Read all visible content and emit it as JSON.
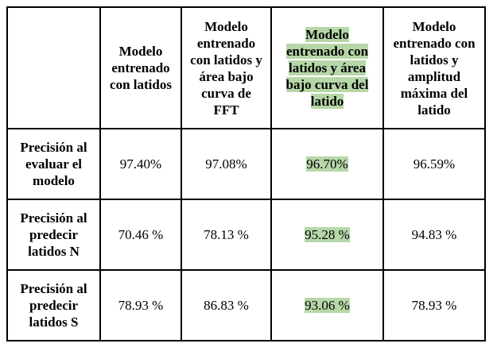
{
  "table": {
    "headers": [
      "",
      "Modelo entrenado con latidos",
      "Modelo entrenado con latidos y área bajo curva de FFT",
      "Modelo entrenado con latidos y área bajo curva del latido",
      "Modelo entrenado con latidos y amplitud máxima del latido"
    ],
    "rows": [
      {
        "label": "Precisión al evaluar el modelo",
        "values": [
          "97.40%",
          "97.08%",
          "96.70%",
          "96.59%"
        ]
      },
      {
        "label": "Precisión al predecir latidos N",
        "values": [
          "70.46 %",
          "78.13 %",
          "95.28 %",
          "94.83 %"
        ]
      },
      {
        "label": "Precisión al predecir latidos S",
        "values": [
          "78.93 %",
          "86.83 %",
          "93.06 %",
          "78.93 %"
        ]
      }
    ],
    "highlight_color": "#b6d7a8",
    "highlighted_column": 3
  }
}
